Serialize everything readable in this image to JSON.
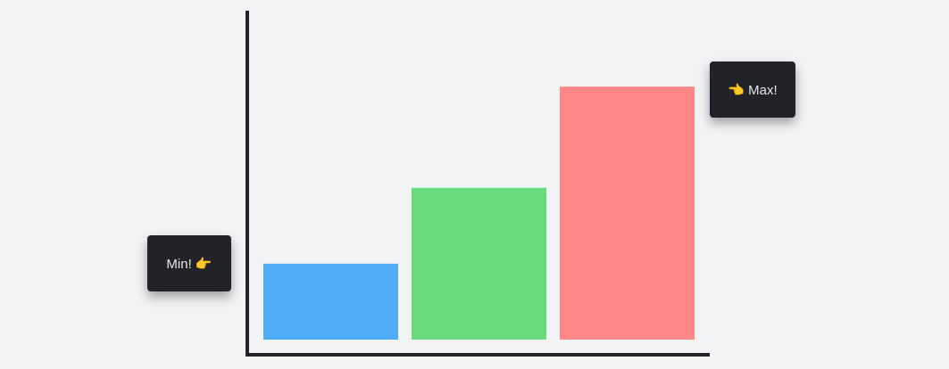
{
  "chart_data": {
    "type": "bar",
    "categories": [
      "",
      "",
      ""
    ],
    "values": [
      3,
      6,
      10
    ],
    "colors": [
      "#4facf7",
      "#6adb7c",
      "#ff8787"
    ],
    "title": "",
    "xlabel": "",
    "ylabel": "",
    "ylim": [
      0,
      13
    ],
    "grid": false,
    "annotations": {
      "min_label": "Min! 👉",
      "max_label": "👈 Max!"
    },
    "axis_color": "#222428"
  }
}
